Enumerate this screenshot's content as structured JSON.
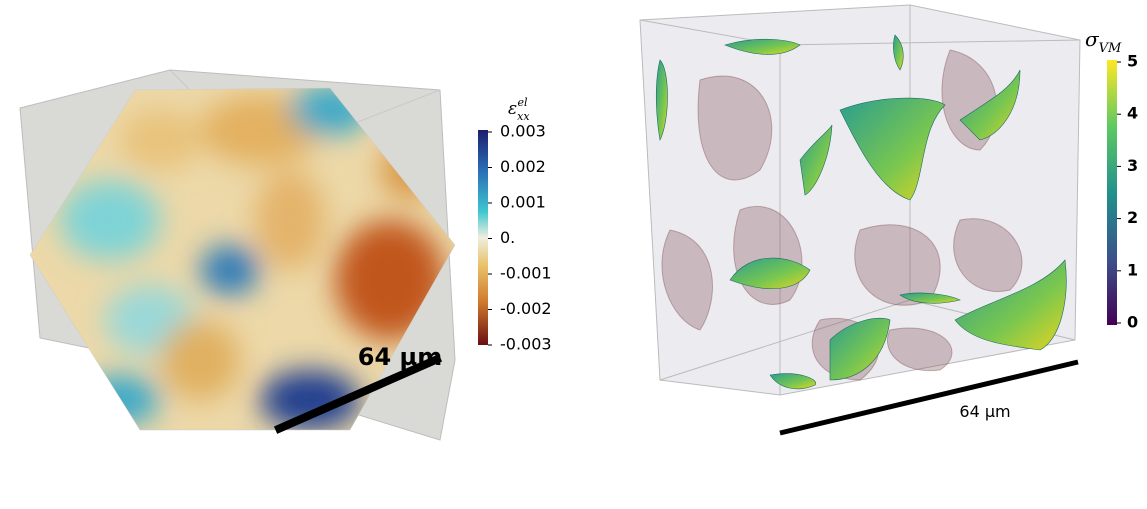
{
  "left_panel": {
    "colorbar": {
      "title": {
        "symbol": "ε",
        "sub": "xx",
        "sup": "el"
      },
      "ticks": [
        "0.003",
        "0.002",
        "0.001",
        "0.",
        "-0.001",
        "-0.002",
        "-0.003"
      ]
    },
    "scale_label": "64 µm"
  },
  "right_panel": {
    "colorbar": {
      "title": {
        "symbol": "σ",
        "sub": "VM"
      },
      "ticks": [
        "5",
        "4",
        "3",
        "2",
        "1",
        "0"
      ]
    },
    "scale_label": "64 µm"
  }
}
